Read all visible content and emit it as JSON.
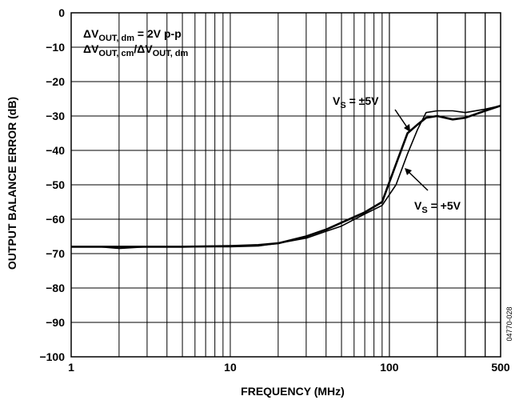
{
  "chart_data": {
    "type": "line",
    "title": "",
    "xlabel": "FREQUENCY (MHz)",
    "ylabel": "OUTPUT BALANCE ERROR (dB)",
    "x_scale": "log",
    "xlim": [
      1,
      500
    ],
    "ylim": [
      -100,
      0
    ],
    "x_ticks": [
      "1",
      "10",
      "100",
      "500"
    ],
    "y_ticks": [
      "0",
      "−10",
      "−20",
      "−30",
      "−40",
      "−50",
      "−60",
      "−70",
      "−80",
      "−90",
      "−100"
    ],
    "grid": true,
    "series": [
      {
        "name": "VS = ±5V",
        "x": [
          1,
          1.5,
          2,
          3,
          5,
          10,
          15,
          20,
          30,
          40,
          50,
          70,
          90,
          110,
          130,
          150,
          170,
          200,
          250,
          300,
          400,
          500
        ],
        "y": [
          -68,
          -68,
          -68,
          -68,
          -68,
          -67.8,
          -67.5,
          -67,
          -65,
          -63,
          -61,
          -58,
          -55,
          -44,
          -35,
          -32.5,
          -30.5,
          -30,
          -31,
          -30.5,
          -28.5,
          -27
        ]
      },
      {
        "name": "VS = +5V",
        "x": [
          1,
          1.5,
          2,
          3,
          5,
          10,
          15,
          20,
          30,
          40,
          50,
          70,
          90,
          110,
          130,
          150,
          170,
          200,
          250,
          300,
          400,
          500
        ],
        "y": [
          -68,
          -68,
          -68.5,
          -68,
          -68,
          -68,
          -67.8,
          -67,
          -65.5,
          -63.5,
          -62,
          -58.5,
          -56,
          -50,
          -41,
          -34,
          -29,
          -28.5,
          -28.5,
          -29,
          -28,
          -27
        ]
      }
    ]
  },
  "annotations": {
    "line1_main": "ΔV",
    "line1_sub": "OUT, dm",
    "line1_rest": " = 2V p-p",
    "line2_main": "ΔV",
    "line2_sub": "OUT, cm",
    "line2_mid": "/ΔV",
    "line2_sub2": "OUT, dm",
    "vs1_main": "V",
    "vs1_sub": "S",
    "vs1_rest": " = ±5V",
    "vs2_main": "V",
    "vs2_sub": "S",
    "vs2_rest": " = +5V"
  },
  "figure_id": "04770-028"
}
